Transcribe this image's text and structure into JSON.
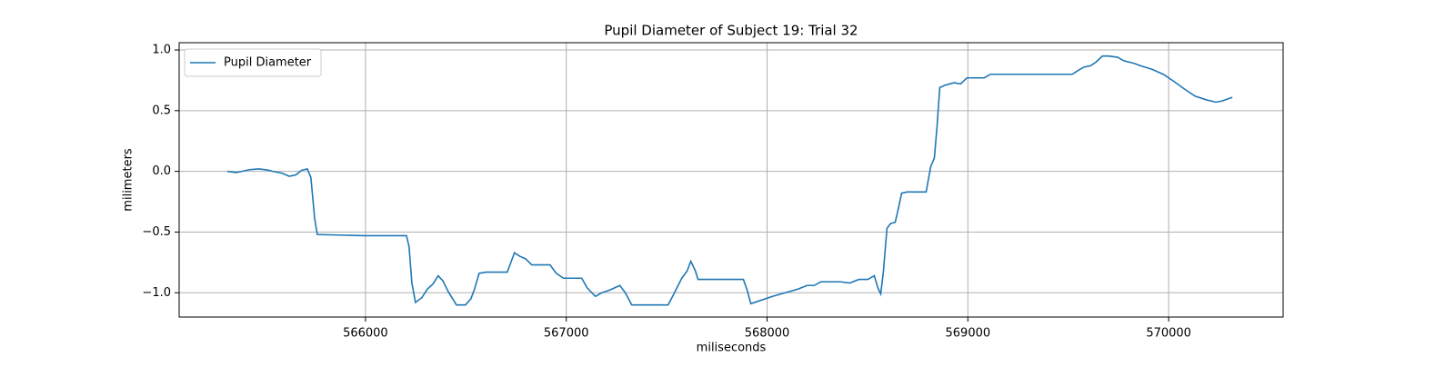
{
  "chart_data": {
    "type": "line",
    "title": "Pupil Diameter of Subject 19: Trial 32",
    "x_label": "miliseconds",
    "y_label": "milimeters",
    "x": [
      565312,
      565357,
      565425,
      565471,
      565516,
      565538,
      565584,
      565620,
      565652,
      565683,
      565710,
      565728,
      565747,
      565760,
      565991,
      566204,
      566217,
      566231,
      566249,
      566281,
      566308,
      566335,
      566362,
      566385,
      566412,
      566453,
      566498,
      566525,
      566543,
      566566,
      566602,
      566706,
      566724,
      566742,
      566769,
      566797,
      566828,
      566919,
      566950,
      566986,
      567077,
      567104,
      567145,
      567177,
      567213,
      567267,
      567294,
      567326,
      567507,
      567539,
      567575,
      567602,
      567620,
      567643,
      567656,
      567882,
      567901,
      567919,
      568027,
      568154,
      568199,
      568235,
      568267,
      568321,
      568367,
      568412,
      568457,
      568502,
      568534,
      568552,
      568566,
      568579,
      568597,
      568615,
      568638,
      568652,
      568670,
      568697,
      568792,
      568815,
      568833,
      568846,
      568860,
      568887,
      568932,
      568964,
      568995,
      569032,
      569081,
      569113,
      569520,
      569548,
      569579,
      569611,
      569638,
      569670,
      569701,
      569746,
      569778,
      569828,
      569860,
      569918,
      569973,
      570027,
      570077,
      570131,
      570186,
      570235,
      570267,
      570317
    ],
    "series": [
      {
        "name": "Pupil Diameter",
        "color": "#1f77b4",
        "values": [
          0.0,
          -0.01,
          0.015,
          0.02,
          0.01,
          0.0,
          -0.015,
          -0.04,
          -0.03,
          0.01,
          0.02,
          -0.05,
          -0.39,
          -0.52,
          -0.53,
          -0.53,
          -0.62,
          -0.92,
          -1.08,
          -1.04,
          -0.97,
          -0.93,
          -0.86,
          -0.9,
          -0.99,
          -1.1,
          -1.1,
          -1.05,
          -0.97,
          -0.84,
          -0.83,
          -0.83,
          -0.75,
          -0.67,
          -0.7,
          -0.72,
          -0.77,
          -0.77,
          -0.84,
          -0.88,
          -0.88,
          -0.96,
          -1.03,
          -1.0,
          -0.98,
          -0.94,
          -1.0,
          -1.1,
          -1.1,
          -1.0,
          -0.88,
          -0.82,
          -0.74,
          -0.82,
          -0.89,
          -0.89,
          -0.98,
          -1.09,
          -1.03,
          -0.97,
          -0.94,
          -0.94,
          -0.91,
          -0.91,
          -0.91,
          -0.92,
          -0.89,
          -0.89,
          -0.86,
          -0.96,
          -1.01,
          -0.83,
          -0.47,
          -0.43,
          -0.42,
          -0.32,
          -0.18,
          -0.17,
          -0.17,
          0.04,
          0.11,
          0.36,
          0.69,
          0.71,
          0.73,
          0.72,
          0.77,
          0.77,
          0.77,
          0.8,
          0.8,
          0.83,
          0.86,
          0.87,
          0.9,
          0.95,
          0.95,
          0.94,
          0.91,
          0.89,
          0.87,
          0.84,
          0.8,
          0.74,
          0.68,
          0.62,
          0.59,
          0.57,
          0.58,
          0.61
        ]
      }
    ],
    "xlim": [
      565072,
      570570
    ],
    "ylim": [
      -1.2,
      1.06
    ],
    "xticks": [
      566000,
      567000,
      568000,
      569000,
      570000
    ],
    "yticks": [
      {
        "value": -1,
        "label": "−1.0"
      },
      {
        "value": -0.5,
        "label": "−0.5"
      },
      {
        "value": 0,
        "label": "0.0"
      },
      0.5,
      {
        "value": 1,
        "label": "1.0"
      }
    ],
    "grid": true,
    "legend": "upper left"
  }
}
